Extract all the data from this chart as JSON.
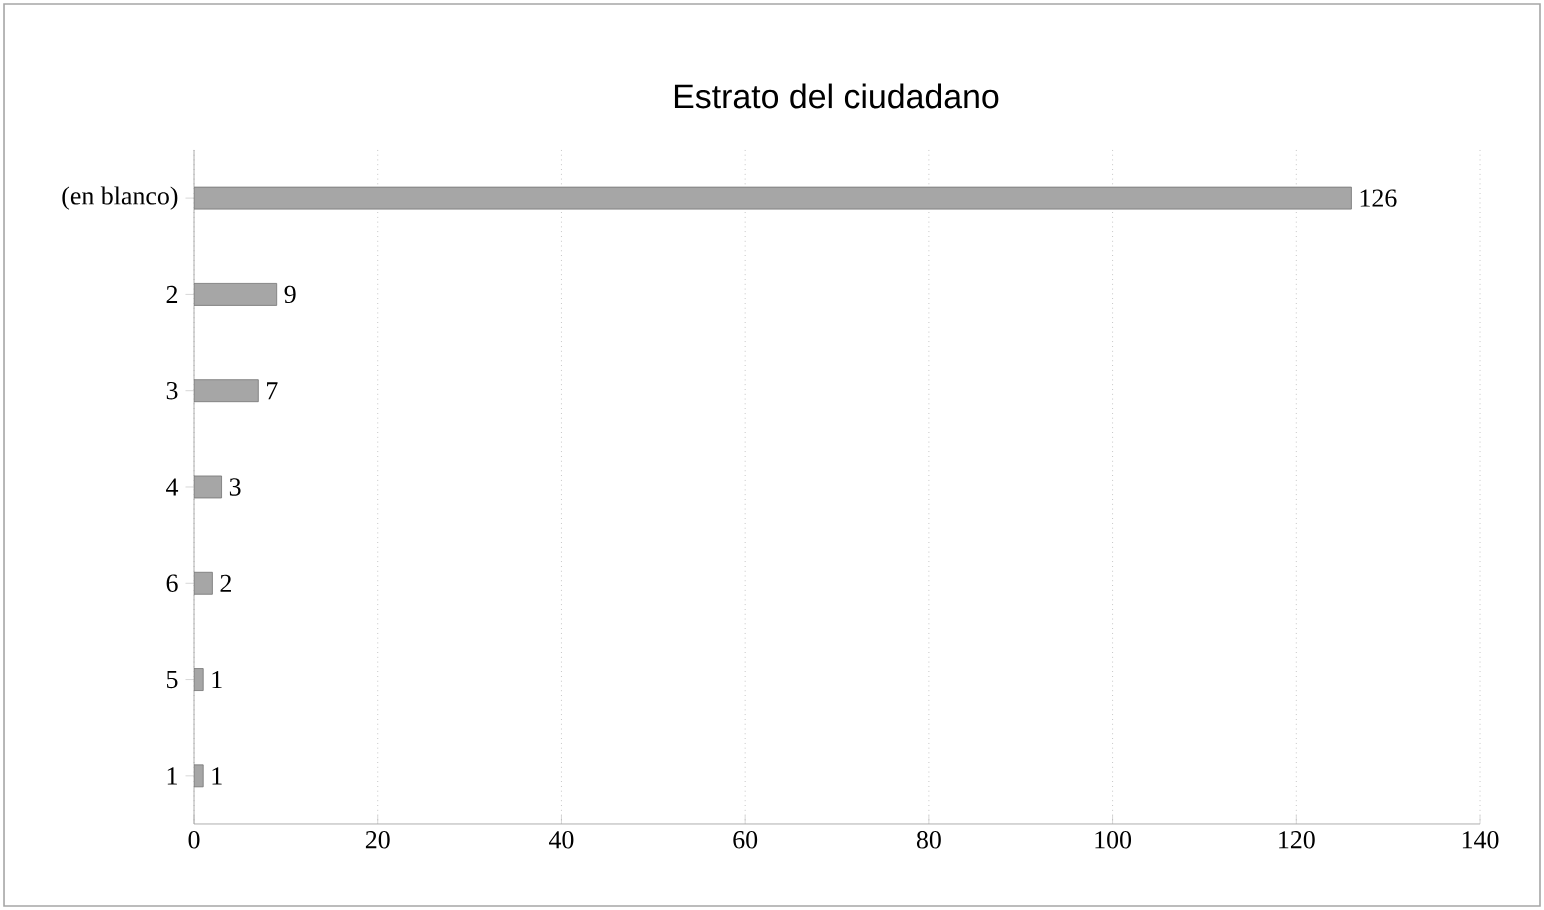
{
  "chart_data": {
    "type": "bar",
    "orientation": "horizontal",
    "title": "Estrato del ciudadano",
    "categories": [
      "(en blanco)",
      "2",
      "3",
      "4",
      "6",
      "5",
      "1"
    ],
    "values": [
      126,
      9,
      7,
      3,
      2,
      1,
      1
    ],
    "color": "#a6a6a6",
    "xlim": [
      0,
      140
    ],
    "xticks": [
      0,
      20,
      40,
      60,
      80,
      100,
      120,
      140
    ],
    "grid": "x",
    "data_labels": true
  }
}
